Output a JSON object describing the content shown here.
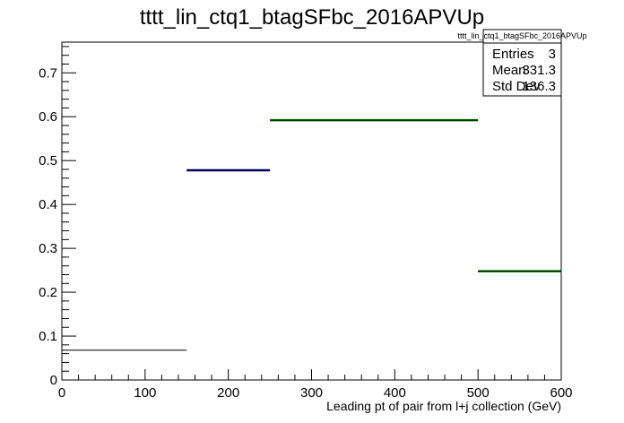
{
  "chart_data": {
    "type": "histogram",
    "title": "tttt_lin_ctq1_btagSFbc_2016APVUp",
    "xlabel": "Leading pt of pair from l+j collection (GeV)",
    "ylabel": "",
    "xlim": [
      0,
      600
    ],
    "ylim": [
      0,
      0.77
    ],
    "x_ticks": [
      0,
      100,
      200,
      300,
      400,
      500,
      600
    ],
    "y_ticks": [
      0,
      0.1,
      0.2,
      0.3,
      0.4,
      0.5,
      0.6,
      0.7
    ],
    "x_tick_labels": [
      "0",
      "100",
      "200",
      "300",
      "400",
      "500",
      "600"
    ],
    "y_tick_labels": [
      "0",
      "0.1",
      "0.2",
      "0.3",
      "0.4",
      "0.5",
      "0.6",
      "0.7"
    ],
    "bins": [
      {
        "x0": 0,
        "x1": 150,
        "value": 0.068,
        "color": "#000000"
      },
      {
        "x0": 150,
        "x1": 250,
        "value": 0.478,
        "color": "#000080"
      },
      {
        "x0": 250,
        "x1": 500,
        "value": 0.592,
        "color": "#007700"
      },
      {
        "x0": 500,
        "x1": 600,
        "value": 0.248,
        "color": "#007700"
      }
    ],
    "grid": false,
    "legend": "top-right"
  },
  "stats": {
    "title": "tttt_lin_ctq1_btagSFbc_2016APVUp",
    "rows": [
      {
        "label": "Entries",
        "value": "3"
      },
      {
        "label": "Mean",
        "value": "331.3"
      },
      {
        "label": "Std Dev",
        "value": "136.3"
      }
    ]
  }
}
